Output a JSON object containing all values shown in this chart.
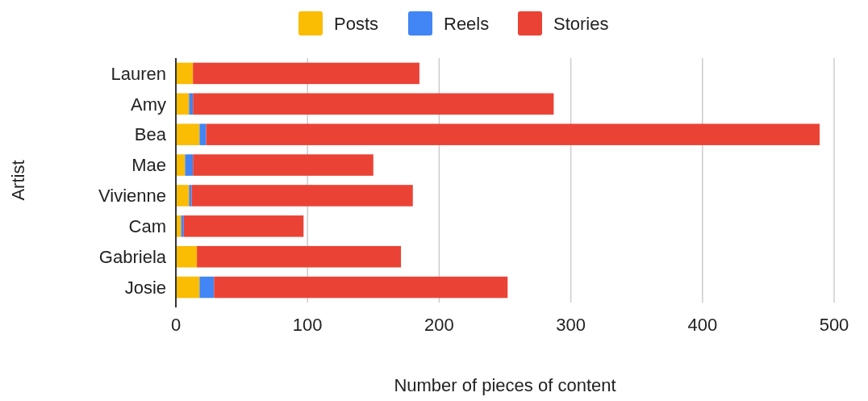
{
  "chart_data": {
    "type": "bar",
    "orientation": "horizontal",
    "stacked": true,
    "xlabel": "Number of pieces of content",
    "ylabel": "Artist",
    "categories": [
      "Lauren",
      "Amy",
      "Bea",
      "Mae",
      "Vivienne",
      "Cam",
      "Gabriela",
      "Josie"
    ],
    "series": [
      {
        "name": "Posts",
        "color": "#fbbc04",
        "values": [
          13,
          10,
          18,
          7,
          10,
          4,
          16,
          18
        ]
      },
      {
        "name": "Reels",
        "color": "#4285f4",
        "values": [
          0,
          3,
          5,
          6,
          2,
          2,
          0,
          11
        ]
      },
      {
        "name": "Stories",
        "color": "#ea4335",
        "values": [
          172,
          274,
          466,
          137,
          168,
          91,
          155,
          223
        ]
      }
    ],
    "xlim": [
      0,
      500
    ],
    "xticks": [
      0,
      100,
      200,
      300,
      400,
      500
    ],
    "grid": "x",
    "legend": "top"
  }
}
